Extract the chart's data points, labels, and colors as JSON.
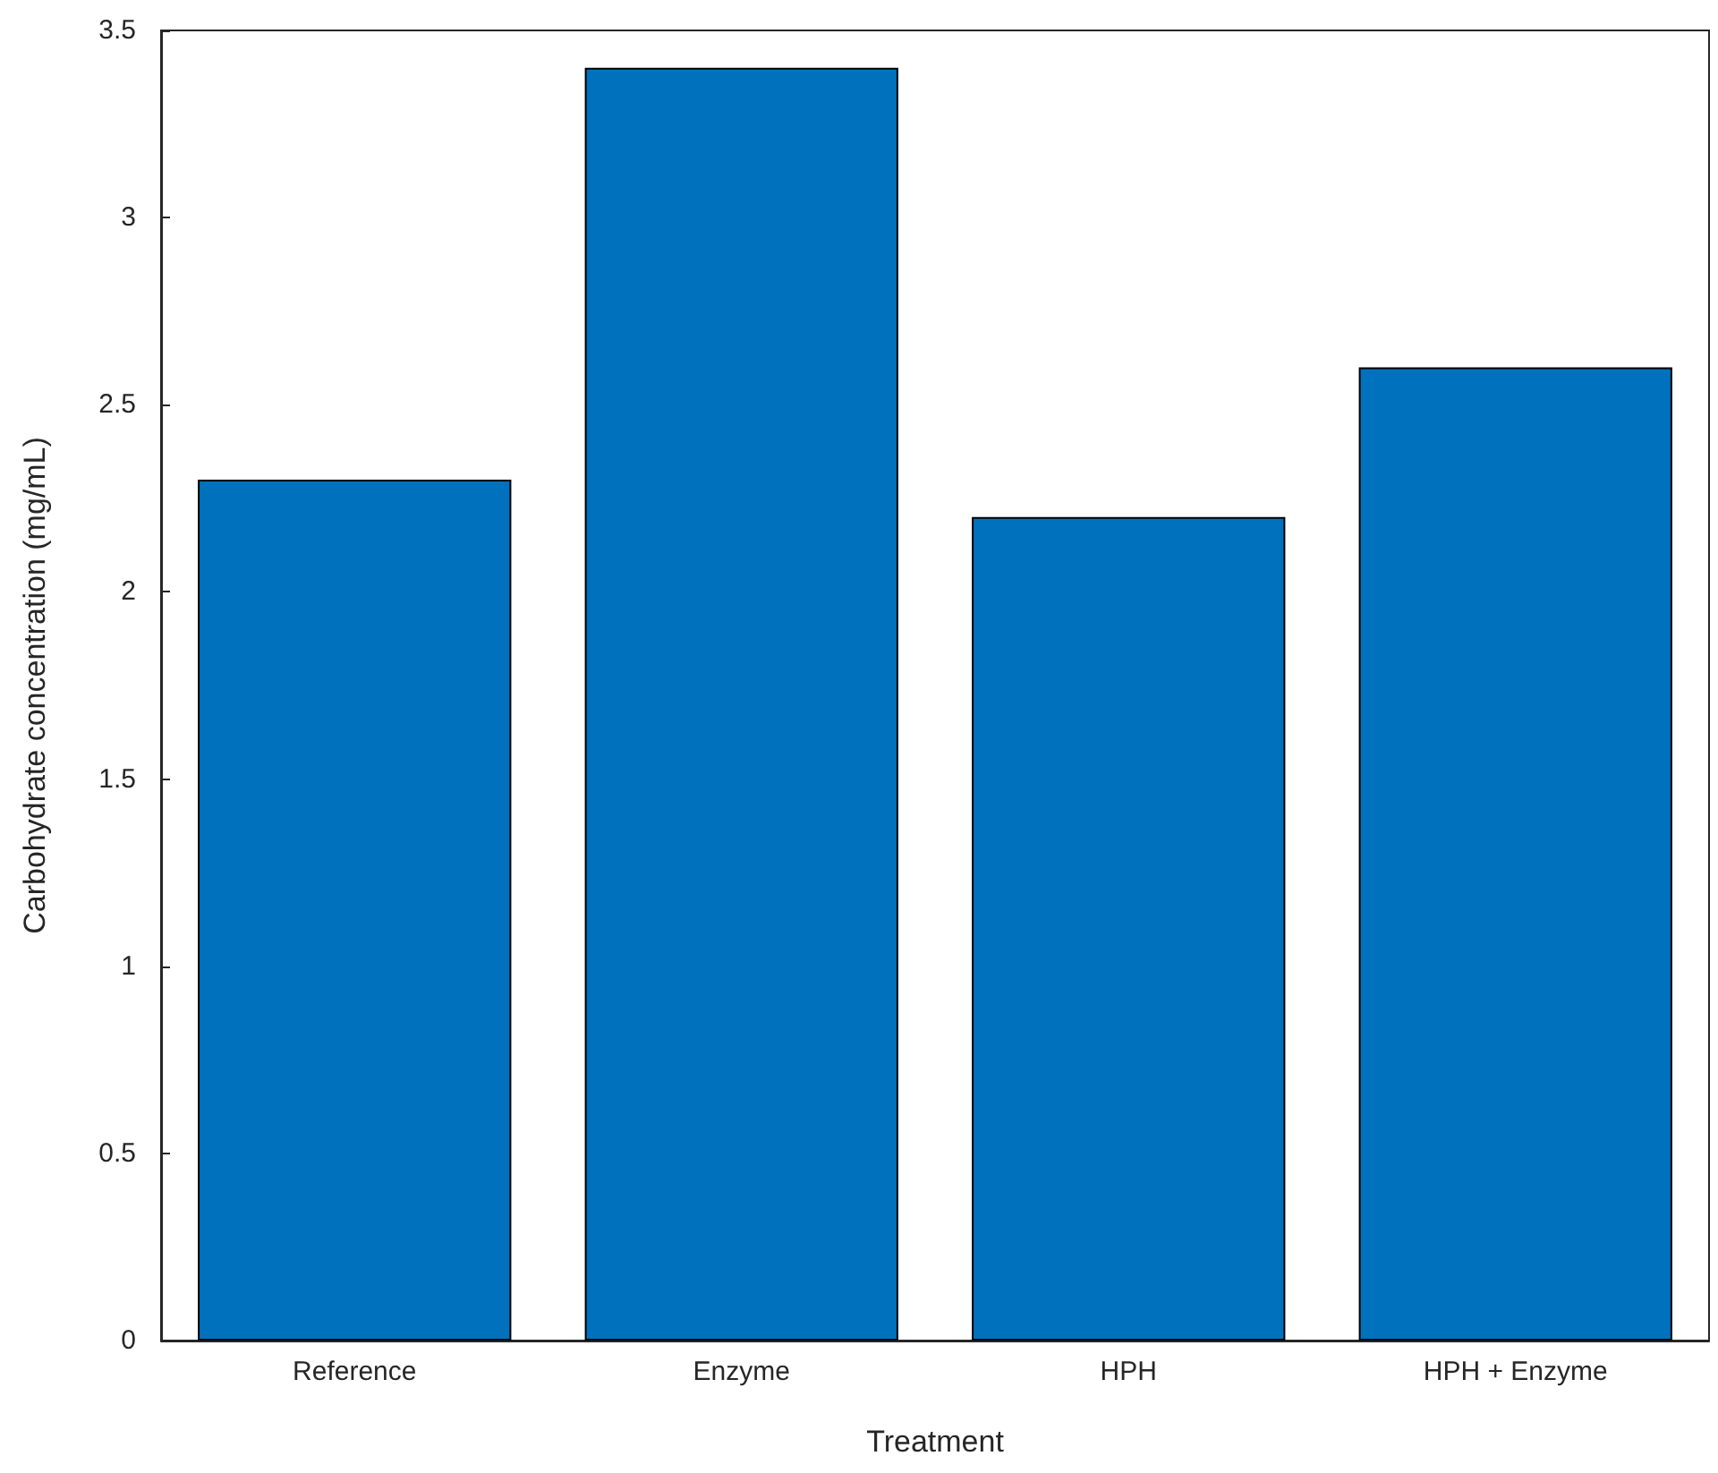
{
  "chart_data": {
    "type": "bar",
    "xlabel": "Treatment",
    "ylabel": "Carbohydrate concentration (mg/mL)",
    "categories": [
      "Reference",
      "Enzyme",
      "HPH",
      "HPH + Enzyme"
    ],
    "values": [
      2.3,
      3.4,
      2.2,
      2.6
    ],
    "color": "#0072bd",
    "ylim": [
      0,
      3.5
    ],
    "yticks": [
      0,
      0.5,
      1,
      1.5,
      2,
      2.5,
      3,
      3.5
    ],
    "grid": false
  }
}
